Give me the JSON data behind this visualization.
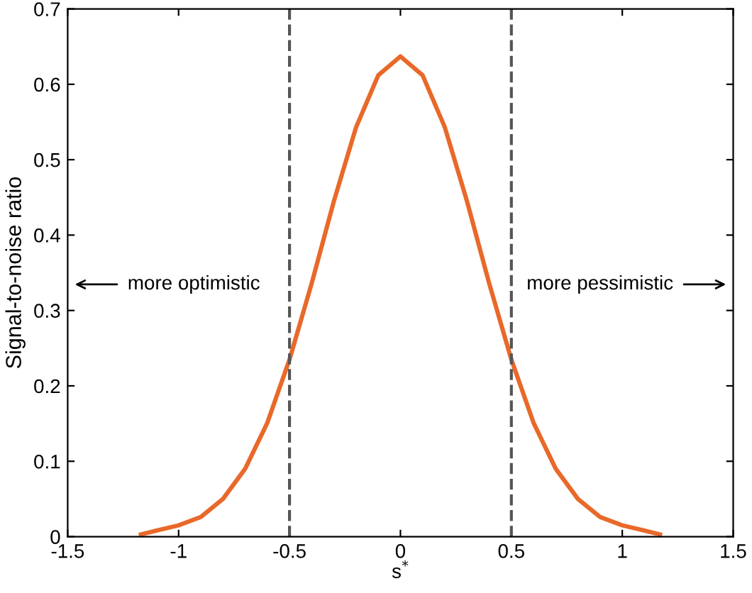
{
  "chart_data": {
    "type": "line",
    "xlabel": "s$^{*}$",
    "ylabel": "Signal-to-noise ratio",
    "x": [
      -1.17,
      -1.1,
      -1.0,
      -0.9,
      -0.8,
      -0.7,
      -0.6,
      -0.5,
      -0.4,
      -0.3,
      -0.2,
      -0.1,
      0,
      0.1,
      0.2,
      0.3,
      0.4,
      0.5,
      0.6,
      0.7,
      0.8,
      0.9,
      1.0,
      1.1,
      1.17
    ],
    "series": [
      {
        "color": "#e8692a",
        "values": [
          0.003,
          0.008,
          0.015,
          0.026,
          0.05,
          0.09,
          0.151,
          0.235,
          0.336,
          0.445,
          0.543,
          0.612,
          0.637,
          0.612,
          0.543,
          0.445,
          0.336,
          0.235,
          0.151,
          0.09,
          0.05,
          0.026,
          0.015,
          0.008,
          0.003
        ]
      }
    ],
    "xlim": [
      -1.5,
      1.5
    ],
    "xticks": [
      -1.5,
      -1,
      -0.5,
      0,
      0.5,
      1,
      1.5
    ],
    "ylim": [
      0,
      0.7
    ],
    "yticks": [
      0,
      0.1,
      0.2,
      0.3,
      0.4,
      0.5,
      0.6,
      0.7
    ],
    "ref_lines": [
      {
        "axis": "x",
        "value": -0.5,
        "color": "#555555",
        "line_style": "dashed"
      },
      {
        "axis": "x",
        "value": 0.5,
        "color": "#555555",
        "line_style": "dashed"
      }
    ],
    "annotations": [
      "more optimistic",
      "more pessimistic"
    ],
    "grid": false,
    "marker": "none",
    "line_style": "solid"
  }
}
